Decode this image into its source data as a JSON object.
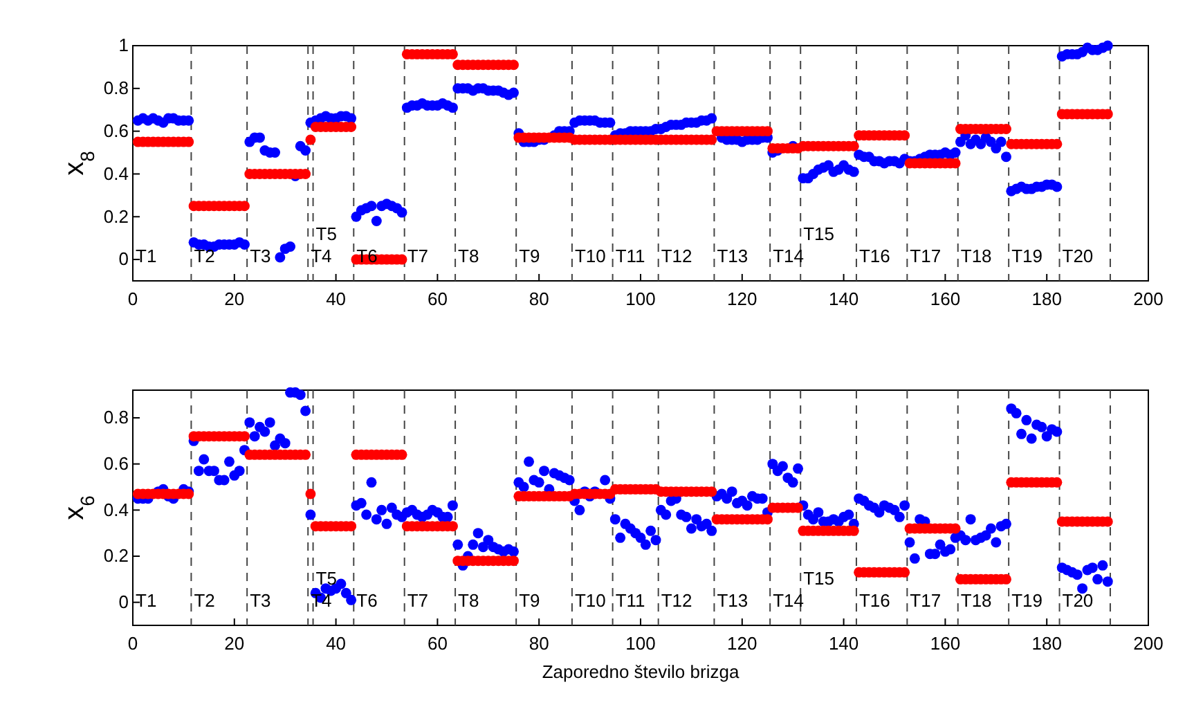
{
  "chart_data": [
    {
      "type": "scatter",
      "ylabel": "x$_{8}$",
      "marker": "circle",
      "x": [
        1,
        2,
        3,
        4,
        5,
        6,
        7,
        8,
        9,
        10,
        11,
        12,
        13,
        14,
        15,
        16,
        17,
        18,
        19,
        20,
        21,
        22,
        23,
        24,
        25,
        26,
        27,
        28,
        29,
        30,
        31,
        32,
        33,
        34,
        35,
        36,
        37,
        38,
        39,
        40,
        41,
        42,
        43,
        44,
        45,
        46,
        47,
        48,
        49,
        50,
        51,
        52,
        53,
        54,
        55,
        56,
        57,
        58,
        59,
        60,
        61,
        62,
        63,
        64,
        65,
        66,
        67,
        68,
        69,
        70,
        71,
        72,
        73,
        74,
        75,
        76,
        77,
        78,
        79,
        80,
        81,
        82,
        83,
        84,
        85,
        86,
        87,
        88,
        89,
        90,
        91,
        92,
        93,
        94,
        95,
        96,
        97,
        98,
        99,
        100,
        101,
        102,
        103,
        104,
        105,
        106,
        107,
        108,
        109,
        110,
        111,
        112,
        113,
        114,
        115,
        116,
        117,
        118,
        119,
        120,
        121,
        122,
        123,
        124,
        125,
        126,
        127,
        128,
        129,
        130,
        131,
        132,
        133,
        134,
        135,
        136,
        137,
        138,
        139,
        140,
        141,
        142,
        143,
        144,
        145,
        146,
        147,
        148,
        149,
        150,
        151,
        152,
        153,
        154,
        155,
        156,
        157,
        158,
        159,
        160,
        161,
        162,
        163,
        164,
        165,
        166,
        167,
        168,
        169,
        170,
        171,
        172,
        173,
        174,
        175,
        176,
        177,
        178,
        179,
        180,
        181,
        182,
        183,
        184,
        185,
        186,
        187,
        188,
        189,
        190,
        191,
        192
      ],
      "series": [
        {
          "color": "#0000ff",
          "values": [
            0.65,
            0.66,
            0.65,
            0.66,
            0.65,
            0.64,
            0.66,
            0.66,
            0.65,
            0.65,
            0.65,
            0.08,
            0.07,
            0.07,
            0.06,
            0.06,
            0.07,
            0.07,
            0.07,
            0.07,
            0.08,
            0.07,
            0.55,
            0.57,
            0.57,
            0.51,
            0.5,
            0.5,
            0.01,
            0.05,
            0.06,
            0.39,
            0.53,
            0.51,
            0.64,
            0.65,
            0.66,
            0.67,
            0.66,
            0.66,
            0.67,
            0.67,
            0.66,
            0.2,
            0.23,
            0.24,
            0.25,
            0.18,
            0.25,
            0.26,
            0.25,
            0.24,
            0.22,
            0.71,
            0.72,
            0.72,
            0.73,
            0.72,
            0.72,
            0.72,
            0.73,
            0.72,
            0.71,
            0.8,
            0.8,
            0.8,
            0.79,
            0.8,
            0.8,
            0.79,
            0.79,
            0.79,
            0.78,
            0.77,
            0.78,
            0.59,
            0.55,
            0.55,
            0.55,
            0.56,
            0.56,
            null,
            0.58,
            0.6,
            0.6,
            0.6,
            0.64,
            0.65,
            0.65,
            0.65,
            0.65,
            0.64,
            0.64,
            0.64,
            0.58,
            0.59,
            0.59,
            0.6,
            0.6,
            0.6,
            0.6,
            0.6,
            0.61,
            0.61,
            0.62,
            0.63,
            0.63,
            0.63,
            0.64,
            0.64,
            0.64,
            0.65,
            0.65,
            0.66,
            null,
            0.57,
            0.56,
            0.56,
            0.56,
            0.55,
            0.56,
            0.56,
            0.56,
            0.57,
            0.57,
            0.5,
            0.51,
            null,
            null,
            0.53,
            null,
            0.38,
            0.38,
            0.4,
            0.42,
            0.43,
            0.44,
            0.41,
            0.42,
            0.44,
            0.42,
            0.41,
            0.49,
            0.48,
            0.48,
            0.46,
            0.46,
            0.45,
            0.46,
            0.46,
            0.45,
            0.47,
            0.46,
            0.46,
            0.47,
            0.48,
            0.49,
            0.49,
            0.49,
            0.5,
            0.49,
            0.5,
            0.55,
            0.58,
            0.54,
            0.56,
            0.54,
            0.57,
            0.55,
            0.52,
            0.55,
            0.48,
            0.32,
            0.33,
            0.34,
            0.33,
            0.33,
            0.34,
            0.34,
            0.35,
            0.35,
            0.34,
            0.95,
            0.96,
            0.96,
            0.96,
            0.97,
            0.99,
            0.98,
            0.98,
            0.99,
            1.0
          ]
        },
        {
          "color": "#ff0000",
          "values": [
            0.55,
            0.55,
            0.55,
            0.55,
            0.55,
            0.55,
            0.55,
            0.55,
            0.55,
            0.55,
            0.55,
            0.25,
            0.25,
            0.25,
            0.25,
            0.25,
            0.25,
            0.25,
            0.25,
            0.25,
            0.25,
            0.25,
            0.4,
            0.4,
            0.4,
            0.4,
            0.4,
            0.4,
            0.4,
            0.4,
            0.4,
            0.4,
            0.4,
            0.4,
            0.56,
            0.62,
            0.62,
            0.62,
            0.62,
            0.62,
            0.62,
            0.62,
            0.62,
            0,
            0,
            0,
            0,
            0,
            0,
            0,
            0,
            0,
            0,
            0.96,
            0.96,
            0.96,
            0.96,
            0.96,
            0.96,
            0.96,
            0.96,
            0.96,
            0.96,
            0.91,
            0.91,
            0.91,
            0.91,
            0.91,
            0.91,
            0.91,
            0.91,
            0.91,
            0.91,
            0.91,
            0.91,
            0.57,
            0.57,
            0.57,
            0.57,
            0.57,
            0.57,
            0.57,
            0.57,
            0.57,
            0.57,
            0.57,
            0.56,
            0.56,
            0.56,
            0.56,
            0.56,
            0.56,
            0.56,
            0.56,
            0.56,
            0.56,
            0.56,
            0.56,
            0.56,
            0.56,
            0.56,
            0.56,
            0.56,
            0.56,
            0.56,
            0.56,
            0.56,
            0.56,
            0.56,
            0.56,
            0.56,
            0.56,
            0.56,
            0.56,
            0.6,
            0.6,
            0.6,
            0.6,
            0.6,
            0.6,
            0.6,
            0.6,
            0.6,
            0.6,
            0.6,
            0.52,
            0.52,
            0.52,
            0.52,
            0.52,
            0.52,
            0.53,
            0.53,
            0.53,
            0.53,
            0.53,
            0.53,
            0.53,
            0.53,
            0.53,
            0.53,
            0.53,
            0.58,
            0.58,
            0.58,
            0.58,
            0.58,
            0.58,
            0.58,
            0.58,
            0.58,
            0.58,
            0.45,
            0.45,
            0.45,
            0.45,
            0.45,
            0.45,
            0.45,
            0.45,
            0.45,
            0.45,
            0.61,
            0.61,
            0.61,
            0.61,
            0.61,
            0.61,
            0.61,
            0.61,
            0.61,
            0.61,
            0.54,
            0.54,
            0.54,
            0.54,
            0.54,
            0.54,
            0.54,
            0.54,
            0.54,
            0.54,
            0.68,
            0.68,
            0.68,
            0.68,
            0.68,
            0.68,
            0.68,
            0.68,
            0.68,
            0.68
          ]
        }
      ],
      "xlim": [
        0,
        200
      ],
      "xticks": [
        0,
        20,
        40,
        60,
        80,
        100,
        120,
        140,
        160,
        180,
        200
      ],
      "ylim": [
        -0.1,
        1
      ],
      "yticks": [
        0,
        0.2,
        0.4,
        0.6,
        0.8,
        1
      ],
      "ref_lines": [
        {
          "axis": "x",
          "value": 11.5,
          "color": "#444444",
          "line_style": "dashed"
        },
        {
          "axis": "x",
          "value": 22.5,
          "color": "#444444",
          "line_style": "dashed"
        },
        {
          "axis": "x",
          "value": 34.5,
          "color": "#444444",
          "line_style": "dashed"
        },
        {
          "axis": "x",
          "value": 35.5,
          "color": "#444444",
          "line_style": "dashed"
        },
        {
          "axis": "x",
          "value": 43.5,
          "color": "#444444",
          "line_style": "dashed"
        },
        {
          "axis": "x",
          "value": 53.5,
          "color": "#444444",
          "line_style": "dashed"
        },
        {
          "axis": "x",
          "value": 63.5,
          "color": "#444444",
          "line_style": "dashed"
        },
        {
          "axis": "x",
          "value": 75.5,
          "color": "#444444",
          "line_style": "dashed"
        },
        {
          "axis": "x",
          "value": 86.5,
          "color": "#444444",
          "line_style": "dashed"
        },
        {
          "axis": "x",
          "value": 94.5,
          "color": "#444444",
          "line_style": "dashed"
        },
        {
          "axis": "x",
          "value": 103.5,
          "color": "#444444",
          "line_style": "dashed"
        },
        {
          "axis": "x",
          "value": 114.5,
          "color": "#444444",
          "line_style": "dashed"
        },
        {
          "axis": "x",
          "value": 125.5,
          "color": "#444444",
          "line_style": "dashed"
        },
        {
          "axis": "x",
          "value": 131.5,
          "color": "#444444",
          "line_style": "dashed"
        },
        {
          "axis": "x",
          "value": 142.5,
          "color": "#444444",
          "line_style": "dashed"
        },
        {
          "axis": "x",
          "value": 152.5,
          "color": "#444444",
          "line_style": "dashed"
        },
        {
          "axis": "x",
          "value": 162.5,
          "color": "#444444",
          "line_style": "dashed"
        },
        {
          "axis": "x",
          "value": 172.5,
          "color": "#444444",
          "line_style": "dashed"
        },
        {
          "axis": "x",
          "value": 182.5,
          "color": "#444444",
          "line_style": "dashed"
        },
        {
          "axis": "x",
          "value": 192.5,
          "color": "#444444",
          "line_style": "dashed"
        }
      ],
      "annotations": [
        "T1",
        "T2",
        "T3",
        "T4",
        "T5",
        "T6",
        "T7",
        "T8",
        "T9",
        "T10",
        "T11",
        "T12",
        "T13",
        "T14",
        "T15",
        "T16",
        "T17",
        "T18",
        "T19",
        "T20"
      ]
    },
    {
      "type": "scatter",
      "ylabel": "x$_{6}$",
      "xlabel": "Zaporedno število brizga",
      "marker": "circle",
      "x": [
        1,
        2,
        3,
        4,
        5,
        6,
        7,
        8,
        9,
        10,
        11,
        12,
        13,
        14,
        15,
        16,
        17,
        18,
        19,
        20,
        21,
        22,
        23,
        24,
        25,
        26,
        27,
        28,
        29,
        30,
        31,
        32,
        33,
        34,
        35,
        36,
        37,
        38,
        39,
        40,
        41,
        42,
        43,
        44,
        45,
        46,
        47,
        48,
        49,
        50,
        51,
        52,
        53,
        54,
        55,
        56,
        57,
        58,
        59,
        60,
        61,
        62,
        63,
        64,
        65,
        66,
        67,
        68,
        69,
        70,
        71,
        72,
        73,
        74,
        75,
        76,
        77,
        78,
        79,
        80,
        81,
        82,
        83,
        84,
        85,
        86,
        87,
        88,
        89,
        90,
        91,
        92,
        93,
        94,
        95,
        96,
        97,
        98,
        99,
        100,
        101,
        102,
        103,
        104,
        105,
        106,
        107,
        108,
        109,
        110,
        111,
        112,
        113,
        114,
        115,
        116,
        117,
        118,
        119,
        120,
        121,
        122,
        123,
        124,
        125,
        126,
        127,
        128,
        129,
        130,
        131,
        132,
        133,
        134,
        135,
        136,
        137,
        138,
        139,
        140,
        141,
        142,
        143,
        144,
        145,
        146,
        147,
        148,
        149,
        150,
        151,
        152,
        153,
        154,
        155,
        156,
        157,
        158,
        159,
        160,
        161,
        162,
        163,
        164,
        165,
        166,
        167,
        168,
        169,
        170,
        171,
        172,
        173,
        174,
        175,
        176,
        177,
        178,
        179,
        180,
        181,
        182,
        183,
        184,
        185,
        186,
        187,
        188,
        189,
        190,
        191,
        192
      ],
      "series": [
        {
          "color": "#0000ff",
          "values": [
            0.45,
            0.45,
            0.45,
            null,
            0.48,
            0.49,
            0.46,
            0.45,
            null,
            0.49,
            0.48,
            0.7,
            0.57,
            0.62,
            0.57,
            0.57,
            0.53,
            0.53,
            0.61,
            0.55,
            0.57,
            0.66,
            0.78,
            0.72,
            0.76,
            0.74,
            0.78,
            0.68,
            0.71,
            0.69,
            0.91,
            0.91,
            0.9,
            0.83,
            0.38,
            0.04,
            0.02,
            0.06,
            0.05,
            0.06,
            0.08,
            0.04,
            0.01,
            0.42,
            0.43,
            0.38,
            0.52,
            0.36,
            0.4,
            0.34,
            0.41,
            0.38,
            0.37,
            0.39,
            0.4,
            0.38,
            0.37,
            0.38,
            0.4,
            0.39,
            0.37,
            0.37,
            0.42,
            0.25,
            0.16,
            0.2,
            0.25,
            0.3,
            0.24,
            0.27,
            0.24,
            0.23,
            0.22,
            0.23,
            0.22,
            0.52,
            0.5,
            0.61,
            0.53,
            0.52,
            0.57,
            0.49,
            0.56,
            0.55,
            0.54,
            0.53,
            0.44,
            0.4,
            0.48,
            0.46,
            0.48,
            null,
            0.53,
            0.45,
            0.36,
            0.28,
            0.34,
            0.32,
            0.3,
            0.28,
            0.25,
            0.31,
            0.27,
            0.4,
            0.38,
            0.44,
            0.45,
            0.38,
            0.37,
            0.32,
            0.36,
            0.33,
            0.34,
            0.31,
            0.46,
            0.47,
            0.45,
            0.48,
            0.43,
            0.44,
            0.42,
            0.46,
            0.45,
            0.45,
            0.39,
            0.6,
            0.57,
            0.59,
            0.54,
            0.52,
            0.58,
            0.42,
            0.38,
            0.36,
            0.39,
            0.35,
            0.35,
            0.36,
            0.35,
            0.37,
            0.38,
            0.34,
            0.45,
            0.44,
            0.42,
            0.41,
            0.39,
            0.42,
            0.41,
            0.4,
            0.37,
            0.42,
            0.26,
            0.19,
            0.36,
            0.35,
            0.21,
            0.21,
            0.25,
            0.22,
            0.23,
            0.28,
            0.29,
            0.27,
            0.36,
            0.27,
            0.28,
            0.29,
            0.32,
            0.26,
            0.33,
            0.34,
            0.84,
            0.82,
            0.73,
            0.79,
            0.71,
            0.77,
            0.76,
            0.72,
            0.75,
            0.74,
            0.15,
            0.14,
            0.13,
            0.12,
            0.06,
            0.14,
            0.15,
            0.1,
            0.16,
            0.09
          ]
        },
        {
          "color": "#ff0000",
          "values": [
            0.47,
            0.47,
            0.47,
            0.47,
            0.47,
            0.47,
            0.47,
            0.47,
            0.47,
            0.47,
            0.47,
            0.72,
            0.72,
            0.72,
            0.72,
            0.72,
            0.72,
            0.72,
            0.72,
            0.72,
            0.72,
            0.72,
            0.64,
            0.64,
            0.64,
            0.64,
            0.64,
            0.64,
            0.64,
            0.64,
            0.64,
            0.64,
            0.64,
            0.64,
            0.47,
            0.33,
            0.33,
            0.33,
            0.33,
            0.33,
            0.33,
            0.33,
            0.33,
            0.64,
            0.64,
            0.64,
            0.64,
            0.64,
            0.64,
            0.64,
            0.64,
            0.64,
            0.64,
            0.33,
            0.33,
            0.33,
            0.33,
            0.33,
            0.33,
            0.33,
            0.33,
            0.33,
            0.33,
            0.18,
            0.18,
            0.18,
            0.18,
            0.18,
            0.18,
            0.18,
            0.18,
            0.18,
            0.18,
            0.18,
            0.18,
            0.46,
            0.46,
            0.46,
            0.46,
            0.46,
            0.46,
            0.46,
            0.46,
            0.46,
            0.46,
            0.46,
            0.47,
            0.47,
            0.47,
            0.47,
            0.47,
            0.47,
            0.47,
            0.47,
            0.49,
            0.49,
            0.49,
            0.49,
            0.49,
            0.49,
            0.49,
            0.49,
            0.49,
            0.48,
            0.48,
            0.48,
            0.48,
            0.48,
            0.48,
            0.48,
            0.48,
            0.48,
            0.48,
            0.48,
            0.36,
            0.36,
            0.36,
            0.36,
            0.36,
            0.36,
            0.36,
            0.36,
            0.36,
            0.36,
            0.36,
            0.41,
            0.41,
            0.41,
            0.41,
            0.41,
            0.41,
            0.31,
            0.31,
            0.31,
            0.31,
            0.31,
            0.31,
            0.31,
            0.31,
            0.31,
            0.31,
            0.31,
            0.13,
            0.13,
            0.13,
            0.13,
            0.13,
            0.13,
            0.13,
            0.13,
            0.13,
            0.13,
            0.32,
            0.32,
            0.32,
            0.32,
            0.32,
            0.32,
            0.32,
            0.32,
            0.32,
            0.32,
            0.1,
            0.1,
            0.1,
            0.1,
            0.1,
            0.1,
            0.1,
            0.1,
            0.1,
            0.1,
            0.52,
            0.52,
            0.52,
            0.52,
            0.52,
            0.52,
            0.52,
            0.52,
            0.52,
            0.52,
            0.35,
            0.35,
            0.35,
            0.35,
            0.35,
            0.35,
            0.35,
            0.35,
            0.35,
            0.35
          ]
        }
      ],
      "xlim": [
        0,
        200
      ],
      "xticks": [
        0,
        20,
        40,
        60,
        80,
        100,
        120,
        140,
        160,
        180,
        200
      ],
      "ylim": [
        -0.1,
        0.92
      ],
      "yticks": [
        0,
        0.2,
        0.4,
        0.6,
        0.8
      ],
      "ref_lines": [
        {
          "axis": "x",
          "value": 11.5,
          "color": "#444444",
          "line_style": "dashed"
        },
        {
          "axis": "x",
          "value": 22.5,
          "color": "#444444",
          "line_style": "dashed"
        },
        {
          "axis": "x",
          "value": 34.5,
          "color": "#444444",
          "line_style": "dashed"
        },
        {
          "axis": "x",
          "value": 35.5,
          "color": "#444444",
          "line_style": "dashed"
        },
        {
          "axis": "x",
          "value": 43.5,
          "color": "#444444",
          "line_style": "dashed"
        },
        {
          "axis": "x",
          "value": 53.5,
          "color": "#444444",
          "line_style": "dashed"
        },
        {
          "axis": "x",
          "value": 63.5,
          "color": "#444444",
          "line_style": "dashed"
        },
        {
          "axis": "x",
          "value": 75.5,
          "color": "#444444",
          "line_style": "dashed"
        },
        {
          "axis": "x",
          "value": 86.5,
          "color": "#444444",
          "line_style": "dashed"
        },
        {
          "axis": "x",
          "value": 94.5,
          "color": "#444444",
          "line_style": "dashed"
        },
        {
          "axis": "x",
          "value": 103.5,
          "color": "#444444",
          "line_style": "dashed"
        },
        {
          "axis": "x",
          "value": 114.5,
          "color": "#444444",
          "line_style": "dashed"
        },
        {
          "axis": "x",
          "value": 125.5,
          "color": "#444444",
          "line_style": "dashed"
        },
        {
          "axis": "x",
          "value": 131.5,
          "color": "#444444",
          "line_style": "dashed"
        },
        {
          "axis": "x",
          "value": 142.5,
          "color": "#444444",
          "line_style": "dashed"
        },
        {
          "axis": "x",
          "value": 152.5,
          "color": "#444444",
          "line_style": "dashed"
        },
        {
          "axis": "x",
          "value": 162.5,
          "color": "#444444",
          "line_style": "dashed"
        },
        {
          "axis": "x",
          "value": 172.5,
          "color": "#444444",
          "line_style": "dashed"
        },
        {
          "axis": "x",
          "value": 182.5,
          "color": "#444444",
          "line_style": "dashed"
        },
        {
          "axis": "x",
          "value": 192.5,
          "color": "#444444",
          "line_style": "dashed"
        }
      ],
      "annotations": [
        "T1",
        "T2",
        "T3",
        "T4",
        "T5",
        "T6",
        "T7",
        "T8",
        "T9",
        "T10",
        "T11",
        "T12",
        "T13",
        "T14",
        "T15",
        "T16",
        "T17",
        "T18",
        "T19",
        "T20"
      ]
    }
  ]
}
